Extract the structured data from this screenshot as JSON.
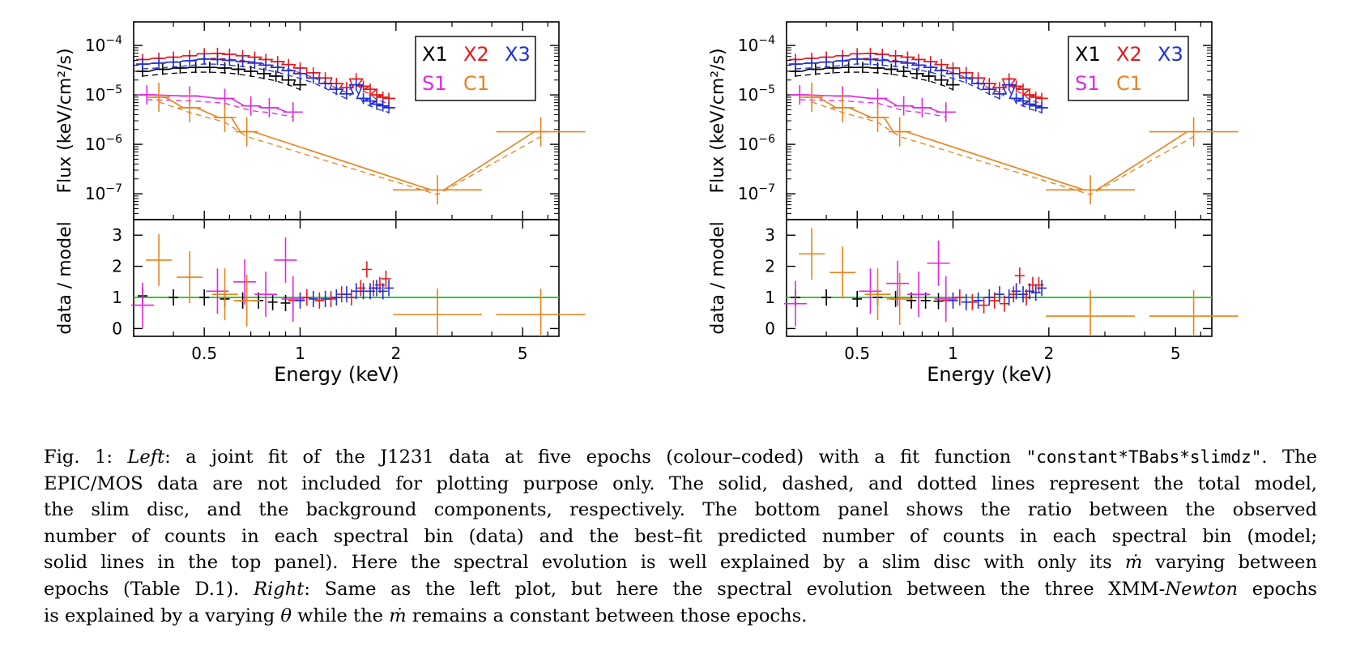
{
  "colors": {
    "X1": "#000000",
    "X2": "#e41a1c",
    "X3": "#1f2fd6",
    "S1": "#e028e0",
    "C1": "#e8821c",
    "ratio_line": "#33cc33",
    "axes": "#000000"
  },
  "legend": {
    "row1": [
      {
        "label": "X1",
        "color_key": "X1"
      },
      {
        "label": "X2",
        "color_key": "X2"
      },
      {
        "label": "X3",
        "color_key": "X3"
      }
    ],
    "row2": [
      {
        "label": "S1",
        "color_key": "S1"
      },
      {
        "label": "C1",
        "color_key": "C1"
      }
    ]
  },
  "chart_data": [
    {
      "id": "left",
      "type": "scatter",
      "xlabel": "Energy (keV)",
      "x_scale": "log",
      "xlim": [
        0.3,
        6.5
      ],
      "x_ticks": [
        {
          "v": 0.5,
          "label": "0.5"
        },
        {
          "v": 1,
          "label": "1"
        },
        {
          "v": 2,
          "label": "2"
        },
        {
          "v": 5,
          "label": "5"
        }
      ],
      "top": {
        "ylabel": "Flux (keV/cm²/s)",
        "y_scale": "log",
        "ylim": [
          3e-08,
          0.0003
        ],
        "y_ticks": [
          {
            "v": 0.0001,
            "base": "10",
            "exp": "−4"
          },
          {
            "v": 1e-05,
            "base": "10",
            "exp": "−5"
          },
          {
            "v": 1e-06,
            "base": "10",
            "exp": "−6"
          },
          {
            "v": 1e-07,
            "base": "10",
            "exp": "−7"
          }
        ],
        "series": [
          {
            "name": "X1",
            "color_key": "X1",
            "x": [
              0.32,
              0.37,
              0.42,
              0.47,
              0.52,
              0.58,
              0.64,
              0.7,
              0.77,
              0.84,
              0.92,
              1.0
            ],
            "y": [
              3e-05,
              3.3e-05,
              3.5e-05,
              3.6e-05,
              3.6e-05,
              3.5e-05,
              3.3e-05,
              3e-05,
              2.7e-05,
              2.4e-05,
              2e-05,
              1.6e-05
            ]
          },
          {
            "name": "X2",
            "color_key": "X2",
            "x": [
              0.32,
              0.36,
              0.4,
              0.45,
              0.5,
              0.55,
              0.6,
              0.66,
              0.72,
              0.78,
              0.85,
              0.92,
              1.0,
              1.1,
              1.2,
              1.3,
              1.4,
              1.5,
              1.58,
              1.66,
              1.74,
              1.82,
              1.9
            ],
            "y": [
              5.2e-05,
              5.5e-05,
              5.8e-05,
              6.2e-05,
              6.8e-05,
              6.9e-05,
              6.6e-05,
              6.2e-05,
              5.8e-05,
              5.2e-05,
              4.7e-05,
              4.1e-05,
              3.5e-05,
              2.8e-05,
              2.2e-05,
              1.7e-05,
              1.4e-05,
              2.1e-05,
              1.5e-05,
              1.3e-05,
              1e-05,
              9e-06,
              8.5e-06
            ]
          },
          {
            "name": "X3",
            "color_key": "X3",
            "x": [
              0.32,
              0.36,
              0.4,
              0.45,
              0.5,
              0.55,
              0.6,
              0.66,
              0.72,
              0.78,
              0.85,
              0.92,
              1.0,
              1.1,
              1.2,
              1.3,
              1.4,
              1.5,
              1.58,
              1.66,
              1.74,
              1.82,
              1.9
            ],
            "y": [
              4.2e-05,
              4.4e-05,
              4.6e-05,
              4.9e-05,
              5.3e-05,
              5.2e-05,
              5e-05,
              4.7e-05,
              4.4e-05,
              4e-05,
              3.6e-05,
              3.1e-05,
              2.7e-05,
              2.2e-05,
              1.7e-05,
              1.3e-05,
              1.05e-05,
              1.6e-05,
              8.5e-06,
              7.5e-06,
              6.5e-06,
              6e-06,
              5.5e-06
            ]
          },
          {
            "name": "S1",
            "color_key": "S1",
            "x": [
              0.33,
              0.45,
              0.58,
              0.7,
              0.8,
              0.95
            ],
            "y": [
              1e-05,
              9.5e-06,
              8.5e-06,
              6e-06,
              5.5e-06,
              4.5e-06
            ]
          },
          {
            "name": "C1",
            "color_key": "C1",
            "x": [
              0.36,
              0.45,
              0.58,
              0.68,
              2.7,
              5.7
            ],
            "y": [
              9e-06,
              5.5e-06,
              3.5e-06,
              1.8e-06,
              1.2e-07,
              1.8e-06
            ]
          }
        ]
      },
      "bottom": {
        "ylabel": "data / model",
        "ylim": [
          -0.25,
          3.5
        ],
        "y_ticks": [
          {
            "v": 0,
            "label": "0"
          },
          {
            "v": 1,
            "label": "1"
          },
          {
            "v": 2,
            "label": "2"
          },
          {
            "v": 3,
            "label": "3"
          }
        ],
        "reference": 1,
        "series": [
          {
            "name": "X1",
            "color_key": "X1",
            "x": [
              0.32,
              0.4,
              0.5,
              0.58,
              0.66,
              0.74,
              0.82,
              0.9
            ],
            "y": [
              1.05,
              1.0,
              1.0,
              0.95,
              0.9,
              0.9,
              0.85,
              0.82
            ]
          },
          {
            "name": "X2",
            "color_key": "X2",
            "x": [
              0.95,
              1.05,
              1.15,
              1.25,
              1.35,
              1.45,
              1.55,
              1.62,
              1.7,
              1.78,
              1.86
            ],
            "y": [
              0.9,
              1.0,
              0.9,
              0.95,
              1.1,
              1.0,
              1.3,
              1.9,
              1.3,
              1.4,
              1.6
            ]
          },
          {
            "name": "X3",
            "color_key": "X3",
            "x": [
              1.0,
              1.1,
              1.2,
              1.3,
              1.4,
              1.5,
              1.58,
              1.66,
              1.74,
              1.82,
              1.9
            ],
            "y": [
              0.9,
              0.95,
              0.95,
              1.0,
              1.1,
              1.2,
              1.2,
              1.2,
              1.3,
              1.2,
              1.3
            ]
          },
          {
            "name": "S1",
            "color_key": "S1",
            "x": [
              0.32,
              0.55,
              0.67,
              0.78,
              0.9,
              0.95
            ],
            "y": [
              0.75,
              1.2,
              1.5,
              1.1,
              2.2,
              0.95
            ]
          },
          {
            "name": "C1",
            "color_key": "C1",
            "x": [
              0.36,
              0.45,
              0.58,
              0.68,
              2.7,
              5.7
            ],
            "y": [
              2.2,
              1.65,
              1.1,
              0.9,
              0.45,
              0.45
            ]
          }
        ]
      }
    },
    {
      "id": "right",
      "type": "scatter",
      "xlabel": "Energy (keV)",
      "x_scale": "log",
      "xlim": [
        0.3,
        6.5
      ],
      "x_ticks": [
        {
          "v": 0.5,
          "label": "0.5"
        },
        {
          "v": 1,
          "label": "1"
        },
        {
          "v": 2,
          "label": "2"
        },
        {
          "v": 5,
          "label": "5"
        }
      ],
      "top": {
        "ylabel": "Flux (keV/cm²/s)",
        "y_scale": "log",
        "ylim": [
          3e-08,
          0.0003
        ],
        "y_ticks": [
          {
            "v": 0.0001,
            "base": "10",
            "exp": "−4"
          },
          {
            "v": 1e-05,
            "base": "10",
            "exp": "−5"
          },
          {
            "v": 1e-06,
            "base": "10",
            "exp": "−6"
          },
          {
            "v": 1e-07,
            "base": "10",
            "exp": "−7"
          }
        ],
        "series": [
          {
            "name": "X1",
            "color_key": "X1",
            "x": [
              0.32,
              0.37,
              0.42,
              0.47,
              0.52,
              0.58,
              0.64,
              0.7,
              0.77,
              0.84,
              0.92,
              1.0
            ],
            "y": [
              3e-05,
              3.3e-05,
              3.5e-05,
              3.6e-05,
              3.6e-05,
              3.5e-05,
              3.3e-05,
              3e-05,
              2.7e-05,
              2.4e-05,
              2e-05,
              1.6e-05
            ]
          },
          {
            "name": "X2",
            "color_key": "X2",
            "x": [
              0.32,
              0.36,
              0.4,
              0.45,
              0.5,
              0.55,
              0.6,
              0.66,
              0.72,
              0.78,
              0.85,
              0.92,
              1.0,
              1.1,
              1.2,
              1.3,
              1.4,
              1.5,
              1.58,
              1.66,
              1.74,
              1.82,
              1.9
            ],
            "y": [
              5.2e-05,
              5.5e-05,
              5.8e-05,
              6.2e-05,
              6.8e-05,
              6.9e-05,
              6.6e-05,
              6.2e-05,
              5.8e-05,
              5.2e-05,
              4.7e-05,
              4.1e-05,
              3.5e-05,
              2.8e-05,
              2.2e-05,
              1.7e-05,
              1.4e-05,
              2.1e-05,
              1.5e-05,
              1.3e-05,
              1e-05,
              9e-06,
              8.5e-06
            ]
          },
          {
            "name": "X3",
            "color_key": "X3",
            "x": [
              0.32,
              0.36,
              0.4,
              0.45,
              0.5,
              0.55,
              0.6,
              0.66,
              0.72,
              0.78,
              0.85,
              0.92,
              1.0,
              1.1,
              1.2,
              1.3,
              1.4,
              1.5,
              1.58,
              1.66,
              1.74,
              1.82,
              1.9
            ],
            "y": [
              4.2e-05,
              4.4e-05,
              4.6e-05,
              4.9e-05,
              5.3e-05,
              5.2e-05,
              5e-05,
              4.7e-05,
              4.4e-05,
              4e-05,
              3.6e-05,
              3.1e-05,
              2.7e-05,
              2.2e-05,
              1.7e-05,
              1.3e-05,
              1.05e-05,
              1.6e-05,
              8.5e-06,
              7.5e-06,
              6.5e-06,
              6e-06,
              5.5e-06
            ]
          },
          {
            "name": "S1",
            "color_key": "S1",
            "x": [
              0.33,
              0.45,
              0.58,
              0.7,
              0.8,
              0.95
            ],
            "y": [
              1e-05,
              9.5e-06,
              8.5e-06,
              6e-06,
              5.5e-06,
              4.5e-06
            ]
          },
          {
            "name": "C1",
            "color_key": "C1",
            "x": [
              0.36,
              0.45,
              0.58,
              0.68,
              2.7,
              5.7
            ],
            "y": [
              9e-06,
              5.5e-06,
              3.5e-06,
              1.8e-06,
              1.2e-07,
              1.8e-06
            ]
          }
        ]
      },
      "bottom": {
        "ylabel": "data / model",
        "ylim": [
          -0.25,
          3.5
        ],
        "y_ticks": [
          {
            "v": 0,
            "label": "0"
          },
          {
            "v": 1,
            "label": "1"
          },
          {
            "v": 2,
            "label": "2"
          },
          {
            "v": 3,
            "label": "3"
          }
        ],
        "reference": 1,
        "series": [
          {
            "name": "X1",
            "color_key": "X1",
            "x": [
              0.32,
              0.4,
              0.5,
              0.58,
              0.66,
              0.74,
              0.82,
              0.9
            ],
            "y": [
              1.0,
              1.0,
              0.95,
              1.0,
              0.95,
              0.9,
              0.9,
              0.88
            ]
          },
          {
            "name": "X2",
            "color_key": "X2",
            "x": [
              0.95,
              1.05,
              1.15,
              1.25,
              1.35,
              1.45,
              1.55,
              1.62,
              1.7,
              1.78,
              1.86
            ],
            "y": [
              0.9,
              1.0,
              0.85,
              0.75,
              0.9,
              0.8,
              1.1,
              1.7,
              1.0,
              1.4,
              1.4
            ]
          },
          {
            "name": "X3",
            "color_key": "X3",
            "x": [
              1.0,
              1.1,
              1.2,
              1.3,
              1.4,
              1.5,
              1.58,
              1.66,
              1.74,
              1.82,
              1.9
            ],
            "y": [
              0.9,
              0.85,
              0.9,
              1.0,
              1.1,
              1.0,
              1.2,
              1.1,
              1.2,
              1.15,
              1.3
            ]
          },
          {
            "name": "S1",
            "color_key": "S1",
            "x": [
              0.32,
              0.55,
              0.67,
              0.78,
              0.9,
              0.95
            ],
            "y": [
              0.8,
              1.2,
              1.45,
              1.1,
              2.1,
              0.95
            ]
          },
          {
            "name": "C1",
            "color_key": "C1",
            "x": [
              0.36,
              0.45,
              0.58,
              0.68,
              2.7,
              5.7
            ],
            "y": [
              2.4,
              1.8,
              1.1,
              0.95,
              0.4,
              0.4
            ]
          }
        ]
      }
    }
  ],
  "caption": {
    "l1": {
      "a": "Fig. 1: ",
      "b": "Left",
      "c": ": a joint fit of the J1231 data at five epochs (colour–coded) with a fit function ",
      "d": "\"constant*TBabs*slimdz\"",
      "e": ". The"
    },
    "l2": "EPIC/MOS data are not included for plotting purpose only. The solid, dashed, and dotted lines represent the total model,",
    "l3": "the slim disc, and the background components, respectively. The bottom panel shows the ratio between the observed",
    "l4": "number of counts in each spectral bin (data) and the best–fit predicted number of counts in each spectral bin (model;",
    "l5": {
      "a": "solid lines in the top panel). Here the spectral evolution is well explained by a slim disc with only its ",
      "b": "ṁ",
      "c": " varying between"
    },
    "l6": {
      "a": "epochs (Table D.1). ",
      "b": "Right",
      "c": ": Same as the left plot, but here the spectral evolution between the three XMM-",
      "d": "Newton",
      "e": " epochs"
    },
    "l7": {
      "a": "is explained by a varying ",
      "b": "θ",
      "c": " while the ",
      "d": "ṁ",
      "e": " remains a constant between those epochs."
    }
  }
}
